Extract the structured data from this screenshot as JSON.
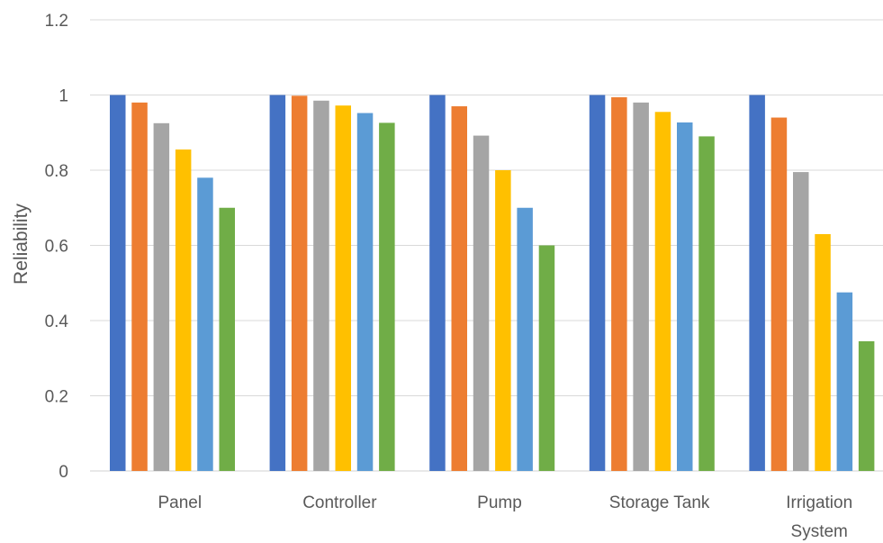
{
  "chart_data": {
    "type": "bar",
    "title": "",
    "xlabel": "",
    "ylabel": "Reliability",
    "ylim": [
      0,
      1.2
    ],
    "yticks": [
      "0",
      "0.2",
      "0.4",
      "0.6",
      "0.8",
      "1",
      "1.2"
    ],
    "grid": true,
    "legend": "none",
    "categories": [
      [
        "Panel"
      ],
      [
        "Controller"
      ],
      [
        "Pump"
      ],
      [
        "Storage Tank"
      ],
      [
        "Irrigation",
        "System"
      ]
    ],
    "series": [
      {
        "color": "#4472c4",
        "values": [
          1.0,
          1.0,
          1.0,
          1.0,
          1.0
        ]
      },
      {
        "color": "#ed7d31",
        "values": [
          0.98,
          0.998,
          0.97,
          0.994,
          0.94
        ]
      },
      {
        "color": "#a5a5a5",
        "values": [
          0.925,
          0.985,
          0.892,
          0.98,
          0.795
        ]
      },
      {
        "color": "#ffc000",
        "values": [
          0.855,
          0.972,
          0.8,
          0.955,
          0.63
        ]
      },
      {
        "color": "#5b9bd5",
        "values": [
          0.78,
          0.952,
          0.7,
          0.927,
          0.475
        ]
      },
      {
        "color": "#70ad47",
        "values": [
          0.7,
          0.926,
          0.6,
          0.89,
          0.345
        ]
      }
    ]
  }
}
